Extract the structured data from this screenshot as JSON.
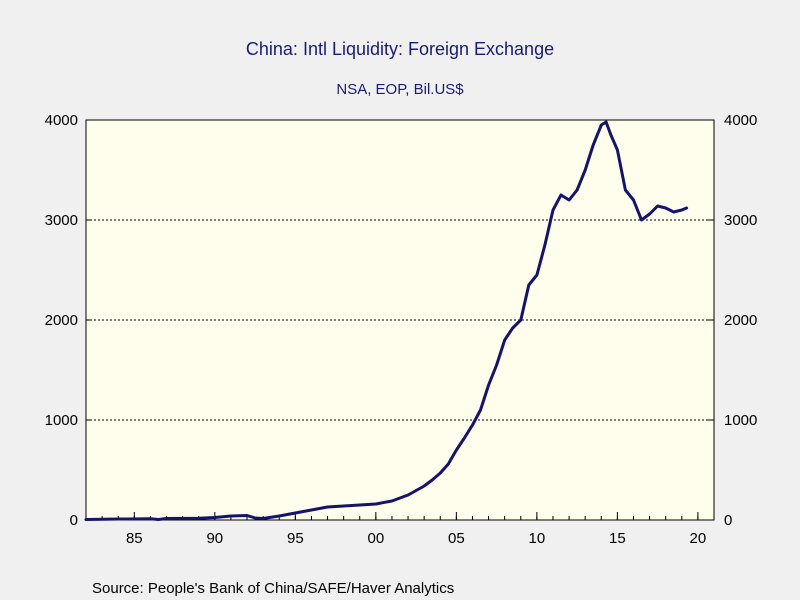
{
  "chart_data": {
    "type": "line",
    "title": "China: Intl Liquidity: Foreign Exchange",
    "subtitle": "NSA, EOP, Bil.US$",
    "source": "Source:  People's Bank of China/SAFE/Haver Analytics",
    "xlim": [
      1982,
      2021
    ],
    "ylim": [
      0,
      4000
    ],
    "x_ticks": [
      {
        "value": 1985,
        "label": "85"
      },
      {
        "value": 1990,
        "label": "90"
      },
      {
        "value": 1995,
        "label": "95"
      },
      {
        "value": 2000,
        "label": "00"
      },
      {
        "value": 2005,
        "label": "05"
      },
      {
        "value": 2010,
        "label": "10"
      },
      {
        "value": 2015,
        "label": "15"
      },
      {
        "value": 2020,
        "label": "20"
      }
    ],
    "y_ticks": [
      {
        "value": 0,
        "label": "0"
      },
      {
        "value": 1000,
        "label": "1000"
      },
      {
        "value": 2000,
        "label": "2000"
      },
      {
        "value": 3000,
        "label": "3000"
      },
      {
        "value": 4000,
        "label": "4000"
      }
    ],
    "grid": "horizontal",
    "line_color": "#14146e",
    "plot_background": "#fffdeb",
    "series": [
      {
        "x": [
          1982.0,
          1984.0,
          1986.0,
          1986.5,
          1987.0,
          1989.0,
          1990.0,
          1991.0,
          1992.0,
          1992.5,
          1993.0,
          1994.0,
          1995.0,
          1996.0,
          1997.0,
          1998.0,
          1999.0,
          2000.0,
          2001.0,
          2002.0,
          2003.0,
          2003.5,
          2004.0,
          2004.5,
          2005.0,
          2005.5,
          2006.0,
          2006.5,
          2007.0,
          2007.5,
          2008.0,
          2008.5,
          2009.0,
          2009.5,
          2010.0,
          2010.5,
          2011.0,
          2011.5,
          2012.0,
          2012.5,
          2013.0,
          2013.5,
          2014.0,
          2014.3,
          2014.6,
          2015.0,
          2015.5,
          2016.0,
          2016.5,
          2017.0,
          2017.5,
          2018.0,
          2018.5,
          2019.0,
          2019.3
        ],
        "values": [
          5,
          10,
          12,
          5,
          15,
          18,
          25,
          40,
          45,
          20,
          15,
          40,
          70,
          100,
          130,
          140,
          150,
          160,
          190,
          250,
          340,
          400,
          470,
          560,
          700,
          820,
          950,
          1100,
          1350,
          1550,
          1800,
          1920,
          2000,
          2350,
          2450,
          2750,
          3100,
          3250,
          3200,
          3300,
          3500,
          3750,
          3950,
          3980,
          3850,
          3700,
          3300,
          3200,
          3000,
          3060,
          3140,
          3120,
          3080,
          3100,
          3120
        ]
      }
    ]
  }
}
